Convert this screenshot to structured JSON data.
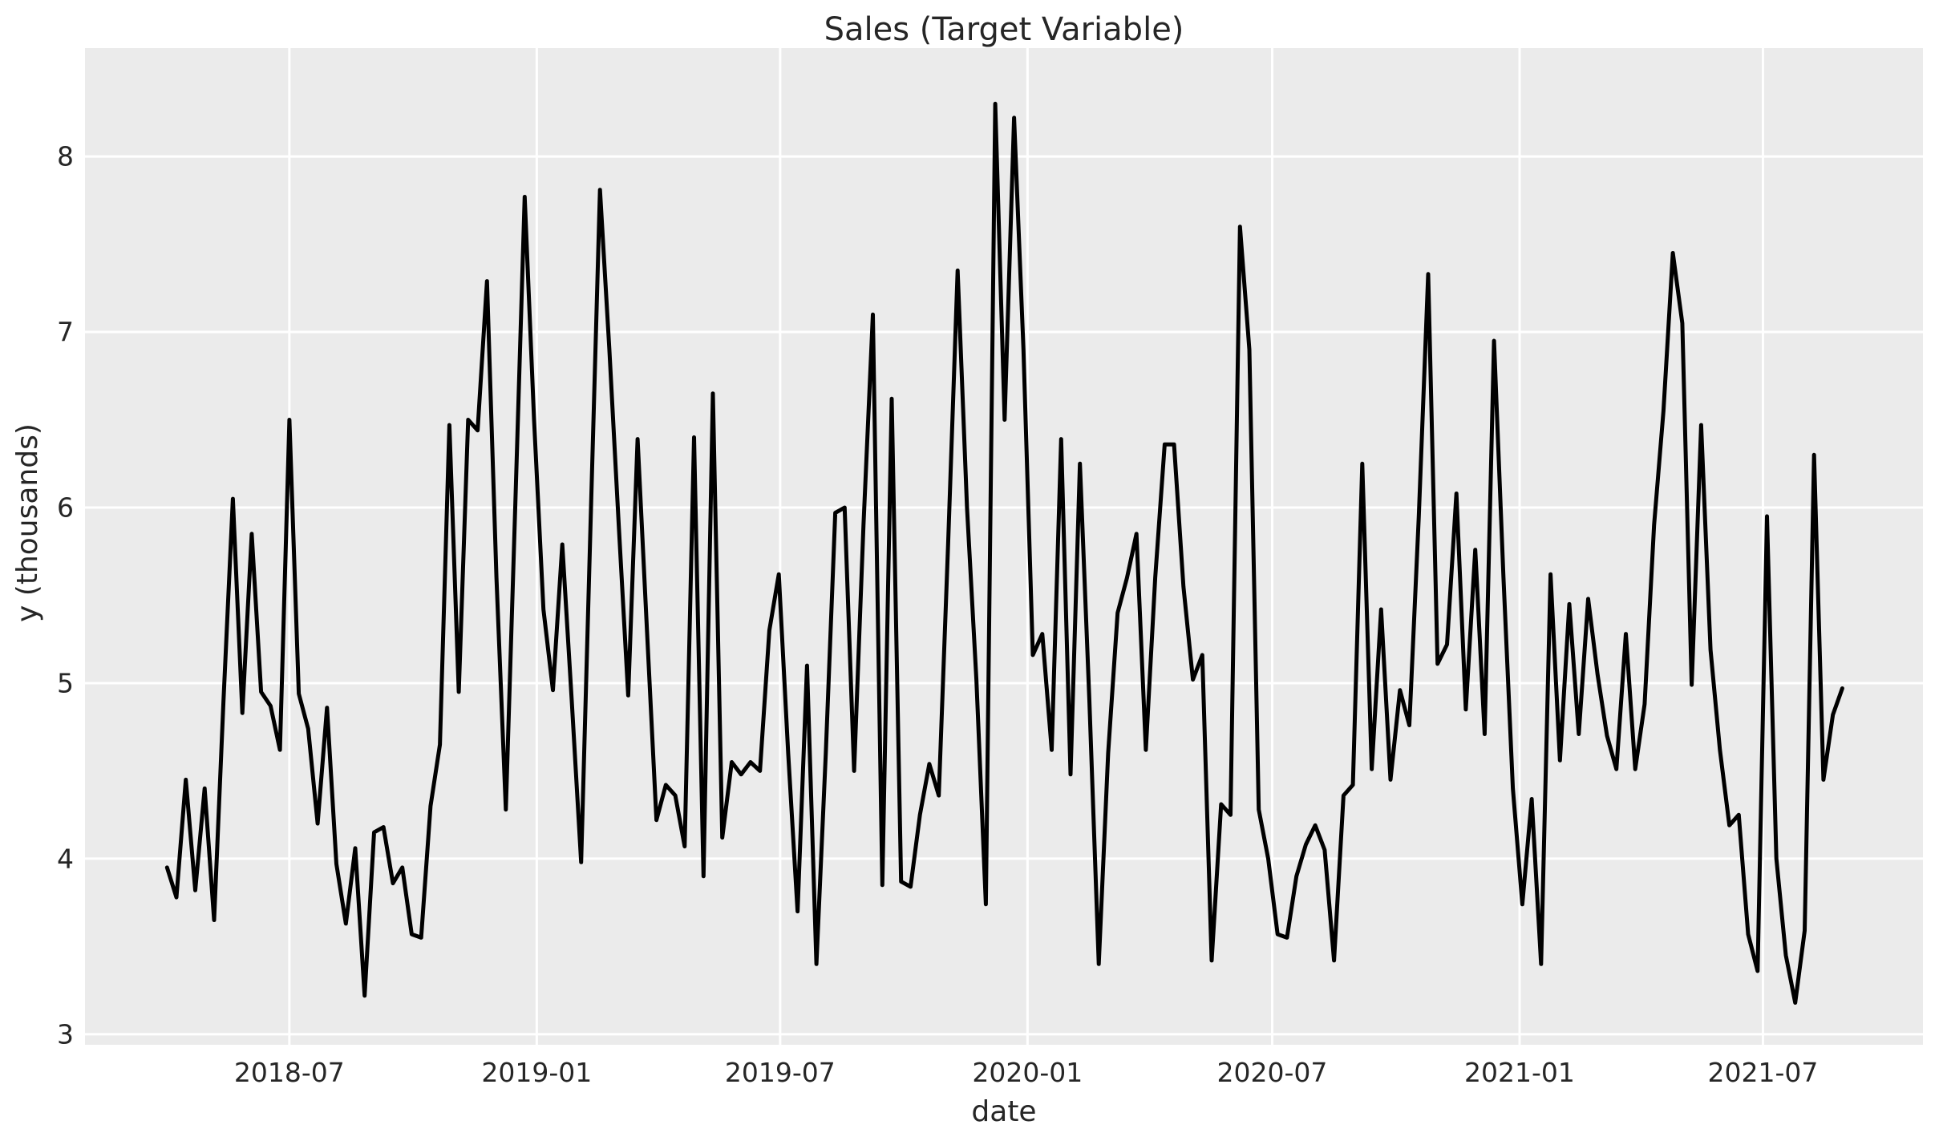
{
  "figure": {
    "title": "Sales (Target Variable)",
    "x_axis_label": "date",
    "y_axis_label": "y (thousands)"
  },
  "chart_data": {
    "type": "line",
    "title": "Sales (Target Variable)",
    "xlabel": "date",
    "ylabel": "y (thousands)",
    "series_name": "Sales",
    "frequency": "weekly",
    "grid": true,
    "legend_position": "none",
    "line_color": "#000000",
    "line_width": 5,
    "plot_bg_color": "#ebebeb",
    "grid_color": "#ffffff",
    "text_color": "#262626",
    "ylim": [
      2.94,
      8.617
    ],
    "xlim": [
      "2018-01-30",
      "2021-10-28"
    ],
    "y_ticks": [
      3,
      4,
      5,
      6,
      7,
      8
    ],
    "x_ticks": [
      {
        "label": "2018-07",
        "date": "2018-07-01"
      },
      {
        "label": "2019-01",
        "date": "2019-01-01"
      },
      {
        "label": "2019-07",
        "date": "2019-07-01"
      },
      {
        "label": "2020-01",
        "date": "2020-01-01"
      },
      {
        "label": "2020-07",
        "date": "2020-07-01"
      },
      {
        "label": "2021-01",
        "date": "2021-01-01"
      },
      {
        "label": "2021-07",
        "date": "2021-07-01"
      }
    ],
    "x": [
      "2018-04-01",
      "2018-04-08",
      "2018-04-15",
      "2018-04-22",
      "2018-04-29",
      "2018-05-06",
      "2018-05-13",
      "2018-05-20",
      "2018-05-27",
      "2018-06-03",
      "2018-06-10",
      "2018-06-17",
      "2018-06-24",
      "2018-07-01",
      "2018-07-08",
      "2018-07-15",
      "2018-07-22",
      "2018-07-29",
      "2018-08-05",
      "2018-08-12",
      "2018-08-19",
      "2018-08-26",
      "2018-09-02",
      "2018-09-09",
      "2018-09-16",
      "2018-09-23",
      "2018-09-30",
      "2018-10-07",
      "2018-10-14",
      "2018-10-21",
      "2018-10-28",
      "2018-11-04",
      "2018-11-11",
      "2018-11-18",
      "2018-11-25",
      "2018-12-02",
      "2018-12-09",
      "2018-12-16",
      "2018-12-23",
      "2018-12-30",
      "2019-01-06",
      "2019-01-13",
      "2019-01-20",
      "2019-01-27",
      "2019-02-03",
      "2019-02-10",
      "2019-02-17",
      "2019-02-24",
      "2019-03-03",
      "2019-03-10",
      "2019-03-17",
      "2019-03-24",
      "2019-03-31",
      "2019-04-07",
      "2019-04-14",
      "2019-04-21",
      "2019-04-28",
      "2019-05-05",
      "2019-05-12",
      "2019-05-19",
      "2019-05-26",
      "2019-06-02",
      "2019-06-09",
      "2019-06-16",
      "2019-06-23",
      "2019-06-30",
      "2019-07-07",
      "2019-07-14",
      "2019-07-21",
      "2019-07-28",
      "2019-08-04",
      "2019-08-11",
      "2019-08-18",
      "2019-08-25",
      "2019-09-01",
      "2019-09-08",
      "2019-09-15",
      "2019-09-22",
      "2019-09-29",
      "2019-10-06",
      "2019-10-13",
      "2019-10-20",
      "2019-10-27",
      "2019-11-03",
      "2019-11-10",
      "2019-11-17",
      "2019-11-24",
      "2019-12-01",
      "2019-12-08",
      "2019-12-15",
      "2019-12-22",
      "2019-12-29",
      "2020-01-05",
      "2020-01-12",
      "2020-01-19",
      "2020-01-26",
      "2020-02-02",
      "2020-02-09",
      "2020-02-16",
      "2020-02-23",
      "2020-03-01",
      "2020-03-08",
      "2020-03-15",
      "2020-03-22",
      "2020-03-29",
      "2020-04-05",
      "2020-04-12",
      "2020-04-19",
      "2020-04-26",
      "2020-05-03",
      "2020-05-10",
      "2020-05-17",
      "2020-05-24",
      "2020-05-31",
      "2020-06-07",
      "2020-06-14",
      "2020-06-21",
      "2020-06-28",
      "2020-07-05",
      "2020-07-12",
      "2020-07-19",
      "2020-07-26",
      "2020-08-02",
      "2020-08-09",
      "2020-08-16",
      "2020-08-23",
      "2020-08-30",
      "2020-09-06",
      "2020-09-13",
      "2020-09-20",
      "2020-09-27",
      "2020-10-04",
      "2020-10-11",
      "2020-10-18",
      "2020-10-25",
      "2020-11-01",
      "2020-11-08",
      "2020-11-15",
      "2020-11-22",
      "2020-11-29",
      "2020-12-06",
      "2020-12-13",
      "2020-12-20",
      "2020-12-27",
      "2021-01-03",
      "2021-01-10",
      "2021-01-17",
      "2021-01-24",
      "2021-01-31",
      "2021-02-07",
      "2021-02-14",
      "2021-02-21",
      "2021-02-28",
      "2021-03-07",
      "2021-03-14",
      "2021-03-21",
      "2021-03-28",
      "2021-04-04",
      "2021-04-11",
      "2021-04-18",
      "2021-04-25",
      "2021-05-02",
      "2021-05-09",
      "2021-05-16",
      "2021-05-23",
      "2021-05-30",
      "2021-06-06",
      "2021-06-13",
      "2021-06-20",
      "2021-06-27",
      "2021-07-04",
      "2021-07-11",
      "2021-07-18",
      "2021-07-25",
      "2021-08-01",
      "2021-08-08",
      "2021-08-15",
      "2021-08-22",
      "2021-08-29"
    ],
    "values": [
      3.95,
      3.78,
      4.45,
      3.82,
      4.4,
      3.65,
      4.9,
      6.05,
      4.83,
      5.85,
      4.95,
      4.87,
      4.62,
      6.5,
      4.94,
      4.74,
      4.2,
      4.86,
      3.97,
      3.63,
      4.06,
      3.22,
      4.15,
      4.18,
      3.86,
      3.95,
      3.57,
      3.55,
      4.3,
      4.65,
      6.47,
      4.95,
      6.5,
      6.44,
      7.29,
      5.6,
      4.28,
      6.0,
      7.77,
      6.5,
      5.42,
      4.96,
      5.79,
      4.9,
      3.98,
      5.9,
      7.81,
      6.9,
      5.9,
      4.93,
      6.39,
      5.3,
      4.22,
      4.42,
      4.36,
      4.07,
      6.4,
      3.9,
      6.65,
      4.12,
      4.55,
      4.48,
      4.55,
      4.5,
      5.3,
      5.62,
      4.6,
      3.7,
      5.1,
      3.4,
      4.6,
      5.97,
      6.0,
      4.5,
      5.9,
      7.1,
      3.85,
      6.62,
      3.87,
      3.84,
      4.25,
      4.54,
      4.36,
      5.8,
      7.35,
      6.0,
      5.02,
      3.74,
      8.3,
      6.5,
      8.22,
      6.9,
      5.16,
      5.28,
      4.62,
      6.39,
      4.48,
      6.25,
      4.9,
      3.4,
      4.6,
      5.4,
      5.6,
      5.85,
      4.62,
      5.6,
      6.36,
      6.36,
      5.55,
      5.02,
      5.16,
      3.42,
      4.31,
      4.25,
      7.6,
      6.9,
      4.28,
      4.0,
      3.57,
      3.55,
      3.9,
      4.08,
      4.19,
      4.05,
      3.42,
      4.36,
      4.42,
      6.25,
      4.51,
      5.42,
      4.45,
      4.96,
      4.76,
      5.95,
      7.33,
      5.11,
      5.22,
      6.08,
      4.85,
      5.76,
      4.71,
      6.95,
      5.6,
      4.4,
      3.74,
      4.34,
      3.4,
      5.62,
      4.56,
      5.45,
      4.71,
      5.48,
      5.05,
      4.7,
      4.51,
      5.28,
      4.51,
      4.88,
      5.9,
      6.55,
      7.45,
      7.05,
      4.99,
      6.47,
      5.19,
      4.62,
      4.19,
      4.25,
      3.57,
      3.36,
      5.95,
      4.0,
      3.45,
      3.18,
      3.59,
      6.3,
      4.45,
      4.82,
      4.97
    ]
  }
}
